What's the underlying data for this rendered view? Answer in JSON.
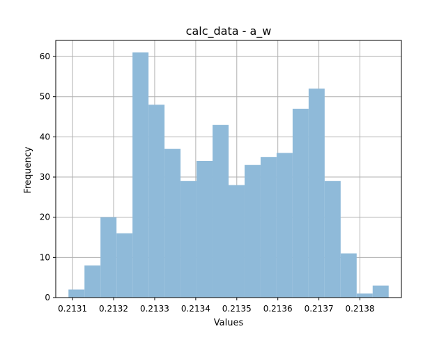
{
  "chart_data": {
    "type": "bar",
    "title": "calc_data - a_w",
    "xlabel": "Values",
    "ylabel": "Frequency",
    "bin_edges": [
      0.21309,
      0.213129,
      0.213168,
      0.213207,
      0.213246,
      0.213285,
      0.213324,
      0.213363,
      0.213402,
      0.213441,
      0.21348,
      0.213519,
      0.213558,
      0.213597,
      0.213636,
      0.213675,
      0.213714,
      0.213753,
      0.213792,
      0.213831,
      0.21387
    ],
    "values": [
      2,
      8,
      20,
      16,
      61,
      48,
      37,
      29,
      34,
      43,
      28,
      33,
      35,
      36,
      47,
      52,
      29,
      11,
      1,
      3
    ],
    "xlim": [
      0.213059,
      0.213901
    ],
    "ylim": [
      0,
      64
    ],
    "x_ticks": [
      0.2131,
      0.2132,
      0.2133,
      0.2134,
      0.2135,
      0.2136,
      0.2137,
      0.2138
    ],
    "x_tick_labels": [
      "0.2131",
      "0.2132",
      "0.2133",
      "0.2134",
      "0.2135",
      "0.2136",
      "0.2137",
      "0.2138"
    ],
    "y_ticks": [
      0,
      10,
      20,
      30,
      40,
      50,
      60
    ],
    "y_tick_labels": [
      "0",
      "10",
      "20",
      "30",
      "40",
      "50",
      "60"
    ],
    "grid": true,
    "legend": "none",
    "colors": {
      "bar": "#8fbad9",
      "grid": "#b0b0b0",
      "axis": "#000000"
    }
  }
}
